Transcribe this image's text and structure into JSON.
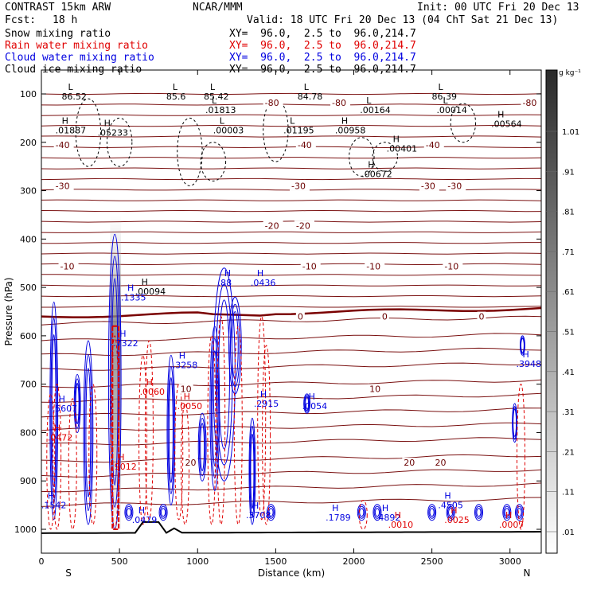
{
  "header": {
    "model": "CONTRAST 15km ARW",
    "org": "NCAR/MMM",
    "init": "Init: 00 UTC Fri 20 Dec 13",
    "fcst_label": "Fcst:",
    "fcst_value": "18 h",
    "valid": "Valid: 18 UTC Fri 20 Dec 13 (04 ChT Sat 21 Dec 13)"
  },
  "fields": [
    {
      "name": "Snow mixing ratio",
      "xy": "XY=  96.0,  2.5 to  96.0,214.7",
      "color": "#000000"
    },
    {
      "name": "Rain water mixing ratio",
      "xy": "XY=  96.0,  2.5 to  96.0,214.7",
      "color": "#e00000"
    },
    {
      "name": "Cloud water mixing ratio",
      "xy": "XY=  96.0,  2.5 to  96.0,214.7",
      "color": "#0000e0"
    },
    {
      "name": "Cloud ice mixing ratio",
      "xy": "XY=  96.0,  2.5 to  96.0,214.7",
      "color": "#000000"
    }
  ],
  "chart_data": {
    "type": "cross-section contour",
    "xlabel": "Distance (km)",
    "ylabel": "Pressure (hPa)",
    "xlim": [
      0,
      3200
    ],
    "ylim": [
      1050,
      50
    ],
    "x_ticks": [
      0,
      500,
      1000,
      1500,
      2000,
      2500,
      3000
    ],
    "y_ticks": [
      100,
      200,
      300,
      400,
      500,
      600,
      700,
      800,
      900,
      1000
    ],
    "endpoints": {
      "left": "S",
      "right": "N"
    },
    "colorbar": {
      "units": "g kg⁻¹",
      "ticks": [
        1.01,
        0.91,
        0.81,
        0.71,
        0.61,
        0.51,
        0.41,
        0.31,
        0.21,
        0.11,
        0.01
      ],
      "tick_labels": [
        "1.01",
        ".91",
        ".81",
        ".71",
        ".61",
        ".51",
        ".41",
        ".31",
        ".21",
        ".11",
        ".01"
      ]
    },
    "temperature_isotherms": [
      {
        "value": -80,
        "pressure": 125
      },
      {
        "value": -60,
        "pressure": 160
      },
      {
        "value": -40,
        "pressure": 207
      },
      {
        "value": -30,
        "pressure": 290
      },
      {
        "value": -20,
        "pressure": 370
      },
      {
        "value": -10,
        "pressure": 460
      },
      {
        "value": 0,
        "pressure": 560
      },
      {
        "value": 10,
        "pressure": 700
      },
      {
        "value": 20,
        "pressure": 860
      }
    ],
    "isotherm_labels": [
      {
        "text": "-80",
        "x": 1430,
        "p": 118
      },
      {
        "text": "-80",
        "x": 1860,
        "p": 118
      },
      {
        "text": "-80",
        "x": 3080,
        "p": 118
      },
      {
        "text": "-40",
        "x": 90,
        "p": 205
      },
      {
        "text": "-40",
        "x": 1640,
        "p": 205
      },
      {
        "text": "-40",
        "x": 2460,
        "p": 205
      },
      {
        "text": "-30",
        "x": 90,
        "p": 290
      },
      {
        "text": "-30",
        "x": 1600,
        "p": 290
      },
      {
        "text": "-30",
        "x": 2430,
        "p": 290
      },
      {
        "text": "-30",
        "x": 2600,
        "p": 290
      },
      {
        "text": "-20",
        "x": 1430,
        "p": 372
      },
      {
        "text": "-20",
        "x": 1630,
        "p": 372
      },
      {
        "text": "-10",
        "x": 120,
        "p": 456
      },
      {
        "text": "-10",
        "x": 1670,
        "p": 456
      },
      {
        "text": "-10",
        "x": 2080,
        "p": 456
      },
      {
        "text": "-10",
        "x": 2580,
        "p": 456
      },
      {
        "text": "0",
        "x": 1640,
        "p": 560
      },
      {
        "text": "0",
        "x": 2180,
        "p": 560
      },
      {
        "text": "0",
        "x": 2800,
        "p": 560
      },
      {
        "text": "10",
        "x": 890,
        "p": 710
      },
      {
        "text": "10",
        "x": 2100,
        "p": 710
      },
      {
        "text": "20",
        "x": 920,
        "p": 862
      },
      {
        "text": "20",
        "x": 2320,
        "p": 862
      },
      {
        "text": "20",
        "x": 2520,
        "p": 862
      }
    ],
    "extrema": [
      {
        "kind": "L",
        "value": "86.52",
        "x": 150,
        "p": 105,
        "color": "#000000"
      },
      {
        "kind": "L",
        "value": "85.6",
        "x": 820,
        "p": 105,
        "color": "#000000"
      },
      {
        "kind": "L",
        "value": "85.42",
        "x": 1060,
        "p": 105,
        "color": "#000000"
      },
      {
        "kind": "L",
        "value": "84.78",
        "x": 1660,
        "p": 105,
        "color": "#000000"
      },
      {
        "kind": "L",
        "value": "86.39",
        "x": 2520,
        "p": 105,
        "color": "#000000"
      },
      {
        "kind": "L",
        "value": ".01813",
        "x": 1070,
        "p": 133,
        "color": "#000000"
      },
      {
        "kind": "L",
        "value": ".00164",
        "x": 2060,
        "p": 133,
        "color": "#000000"
      },
      {
        "kind": "L",
        "value": ".00014",
        "x": 2550,
        "p": 133,
        "color": "#000000"
      },
      {
        "kind": "H",
        "value": ".01887",
        "x": 110,
        "p": 175,
        "color": "#000000"
      },
      {
        "kind": "H",
        "value": ".05233",
        "x": 380,
        "p": 180,
        "color": "#000000"
      },
      {
        "kind": "L",
        "value": ".00003",
        "x": 1120,
        "p": 175,
        "color": "#000000"
      },
      {
        "kind": "L",
        "value": ".01195",
        "x": 1570,
        "p": 175,
        "color": "#000000"
      },
      {
        "kind": "H",
        "value": ".00958",
        "x": 1900,
        "p": 175,
        "color": "#000000"
      },
      {
        "kind": "H",
        "value": ".00564",
        "x": 2900,
        "p": 162,
        "color": "#000000"
      },
      {
        "kind": "H",
        "value": ".00401",
        "x": 2230,
        "p": 213,
        "color": "#000000"
      },
      {
        "kind": "H",
        "value": ".00672",
        "x": 2070,
        "p": 265,
        "color": "#000000"
      },
      {
        "kind": "H",
        "value": ".00094",
        "x": 620,
        "p": 508,
        "color": "#000000"
      },
      {
        "kind": "H",
        "value": ".1335",
        "x": 530,
        "p": 520,
        "color": "#0000e0"
      },
      {
        "kind": "H",
        "value": ".88",
        "x": 1150,
        "p": 490,
        "color": "#0000e0"
      },
      {
        "kind": "H",
        "value": ".0436",
        "x": 1360,
        "p": 490,
        "color": "#0000e0"
      },
      {
        "kind": "H",
        "value": ".7322",
        "x": 480,
        "p": 615,
        "color": "#0000e0"
      },
      {
        "kind": "H",
        "value": ".3258",
        "x": 860,
        "p": 660,
        "color": "#0000e0"
      },
      {
        "kind": "H",
        "value": ".3948",
        "x": 3060,
        "p": 658,
        "color": "#0000e0"
      },
      {
        "kind": "H",
        "value": ".2915",
        "x": 1380,
        "p": 740,
        "color": "#0000e0"
      },
      {
        "kind": "H",
        "value": ".0054",
        "x": 1690,
        "p": 745,
        "color": "#0000e0"
      },
      {
        "kind": "H",
        "value": ".5607",
        "x": 90,
        "p": 750,
        "color": "#0000e0"
      },
      {
        "kind": "H",
        "value": ".1542",
        "x": 20,
        "p": 950,
        "color": "#0000e0"
      },
      {
        "kind": "H",
        "value": ".0479",
        "x": 600,
        "p": 980,
        "color": "#0000e0"
      },
      {
        "kind": "H",
        "value": ".3708",
        "x": 1330,
        "p": 970,
        "color": "#0000e0"
      },
      {
        "kind": "H",
        "value": ".1789",
        "x": 1840,
        "p": 975,
        "color": "#0000e0"
      },
      {
        "kind": "H",
        "value": ".4892",
        "x": 2160,
        "p": 975,
        "color": "#0000e0"
      },
      {
        "kind": "H",
        "value": ".4505",
        "x": 2560,
        "p": 950,
        "color": "#0000e0"
      },
      {
        "kind": "H",
        "value": ".0060",
        "x": 650,
        "p": 715,
        "color": "#e00000"
      },
      {
        "kind": "H",
        "value": ".0050",
        "x": 890,
        "p": 745,
        "color": "#e00000"
      },
      {
        "kind": "H",
        "value": ".0472",
        "x": 60,
        "p": 810,
        "color": "#e00000"
      },
      {
        "kind": "H",
        "value": ".9012",
        "x": 470,
        "p": 870,
        "color": "#e00000"
      },
      {
        "kind": "H",
        "value": ".0010",
        "x": 2240,
        "p": 990,
        "color": "#e00000"
      },
      {
        "kind": "H",
        "value": ".0025",
        "x": 2600,
        "p": 980,
        "color": "#e00000"
      },
      {
        "kind": "H",
        "value": ".0007",
        "x": 2950,
        "p": 990,
        "color": "#e00000"
      }
    ]
  }
}
